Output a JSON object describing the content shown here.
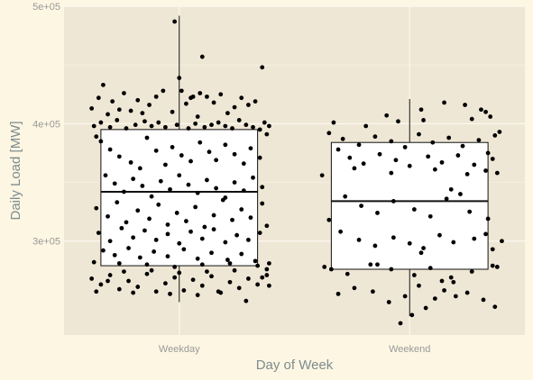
{
  "chart_data": {
    "type": "boxplot-jitter",
    "xlabel": "Day of Week",
    "ylabel": "Daily Load [MW]",
    "ylim": [
      220000,
      500000
    ],
    "y_ticks": [
      {
        "value": 300000,
        "label": "3e+05"
      },
      {
        "value": 400000,
        "label": "4e+05"
      },
      {
        "value": 500000,
        "label": "5e+05"
      }
    ],
    "categories": [
      "Weekday",
      "Weekend"
    ],
    "boxes": [
      {
        "category": "Weekday",
        "min": 248000,
        "q1": 279000,
        "median": 342000,
        "q3": 395000,
        "max": 492000
      },
      {
        "category": "Weekend",
        "min": 236000,
        "q1": 276000,
        "median": 334000,
        "q3": 384000,
        "max": 421000
      }
    ],
    "points": {
      "Weekday": [
        [
          -0.38,
          413000
        ],
        [
          -0.35,
          422000
        ],
        [
          -0.33,
          433000
        ],
        [
          -0.31,
          408000
        ],
        [
          -0.29,
          419000
        ],
        [
          -0.26,
          412000
        ],
        [
          -0.24,
          426000
        ],
        [
          -0.21,
          411000
        ],
        [
          -0.18,
          420000
        ],
        [
          -0.16,
          409000
        ],
        [
          -0.13,
          416000
        ],
        [
          -0.1,
          423000
        ],
        [
          -0.07,
          428000
        ],
        [
          -0.03,
          410000
        ],
        [
          0.0,
          439000
        ],
        [
          0.03,
          417000
        ],
        [
          0.06,
          423000
        ],
        [
          0.09,
          426000
        ],
        [
          0.12,
          423000
        ],
        [
          0.15,
          418000
        ],
        [
          0.18,
          425000
        ],
        [
          0.21,
          409000
        ],
        [
          0.24,
          414000
        ],
        [
          0.27,
          422000
        ],
        [
          0.3,
          416000
        ],
        [
          0.33,
          419000
        ],
        [
          0.36,
          448000
        ],
        [
          0.05,
          422000
        ],
        [
          0.08,
          406000
        ],
        [
          0.1,
          457000
        ],
        [
          -0.02,
          487000
        ],
        [
          0.01,
          428000
        ],
        [
          -0.37,
          398000
        ],
        [
          -0.34,
          401000
        ],
        [
          -0.3,
          397000
        ],
        [
          -0.27,
          403000
        ],
        [
          -0.23,
          396000
        ],
        [
          -0.19,
          399000
        ],
        [
          -0.15,
          402000
        ],
        [
          -0.12,
          398000
        ],
        [
          -0.09,
          401000
        ],
        [
          -0.06,
          397000
        ],
        [
          -0.01,
          399000
        ],
        [
          0.04,
          396000
        ],
        [
          0.07,
          400000
        ],
        [
          0.11,
          397000
        ],
        [
          0.14,
          399000
        ],
        [
          0.17,
          401000
        ],
        [
          0.2,
          398000
        ],
        [
          0.23,
          396000
        ],
        [
          0.26,
          403000
        ],
        [
          0.29,
          399000
        ],
        [
          0.32,
          397000
        ],
        [
          0.35,
          395000
        ],
        [
          0.37,
          401000
        ],
        [
          0.39,
          398000
        ],
        [
          0.38,
          391000
        ],
        [
          -0.36,
          389000
        ],
        [
          -0.34,
          385000
        ],
        [
          -0.3,
          378000
        ],
        [
          -0.26,
          372000
        ],
        [
          -0.21,
          367000
        ],
        [
          -0.17,
          362000
        ],
        [
          -0.14,
          388000
        ],
        [
          -0.1,
          377000
        ],
        [
          -0.06,
          365000
        ],
        [
          -0.03,
          380000
        ],
        [
          0.01,
          373000
        ],
        [
          0.05,
          368000
        ],
        [
          0.09,
          384000
        ],
        [
          0.13,
          376000
        ],
        [
          0.16,
          369000
        ],
        [
          0.2,
          382000
        ],
        [
          0.24,
          374000
        ],
        [
          0.28,
          366000
        ],
        [
          0.31,
          379000
        ],
        [
          0.35,
          371000
        ],
        [
          -0.32,
          356000
        ],
        [
          -0.28,
          349000
        ],
        [
          -0.24,
          342000
        ],
        [
          -0.2,
          353000
        ],
        [
          -0.16,
          347000
        ],
        [
          -0.12,
          338000
        ],
        [
          -0.08,
          351000
        ],
        [
          -0.04,
          344000
        ],
        [
          0.0,
          356000
        ],
        [
          0.04,
          348000
        ],
        [
          0.08,
          341000
        ],
        [
          0.12,
          352000
        ],
        [
          0.16,
          345000
        ],
        [
          0.2,
          337000
        ],
        [
          0.24,
          350000
        ],
        [
          0.28,
          343000
        ],
        [
          0.32,
          354000
        ],
        [
          0.36,
          346000
        ],
        [
          -0.36,
          328000
        ],
        [
          -0.31,
          321000
        ],
        [
          -0.27,
          333000
        ],
        [
          -0.23,
          316000
        ],
        [
          -0.18,
          326000
        ],
        [
          -0.13,
          319000
        ],
        [
          -0.09,
          331000
        ],
        [
          -0.05,
          314000
        ],
        [
          -0.01,
          324000
        ],
        [
          0.03,
          317000
        ],
        [
          0.07,
          329000
        ],
        [
          0.11,
          312000
        ],
        [
          0.15,
          322000
        ],
        [
          0.19,
          335000
        ],
        [
          0.23,
          318000
        ],
        [
          0.27,
          327000
        ],
        [
          0.31,
          320000
        ],
        [
          0.36,
          332000
        ],
        [
          0.38,
          313000
        ],
        [
          -0.35,
          307000
        ],
        [
          -0.3,
          300000
        ],
        [
          -0.25,
          311000
        ],
        [
          -0.2,
          303000
        ],
        [
          -0.15,
          309000
        ],
        [
          -0.1,
          301000
        ],
        [
          -0.05,
          306000
        ],
        [
          0.0,
          298000
        ],
        [
          0.05,
          308000
        ],
        [
          0.1,
          302000
        ],
        [
          0.15,
          310000
        ],
        [
          0.2,
          299000
        ],
        [
          0.25,
          305000
        ],
        [
          0.3,
          301000
        ],
        [
          0.35,
          307000
        ],
        [
          -0.33,
          292000
        ],
        [
          -0.28,
          288000
        ],
        [
          -0.22,
          294000
        ],
        [
          -0.17,
          286000
        ],
        [
          -0.11,
          291000
        ],
        [
          -0.05,
          287000
        ],
        [
          0.02,
          293000
        ],
        [
          0.08,
          285000
        ],
        [
          0.14,
          290000
        ],
        [
          0.21,
          284000
        ],
        [
          0.27,
          289000
        ],
        [
          0.33,
          283000
        ],
        [
          -0.37,
          282000
        ],
        [
          -0.26,
          281000
        ],
        [
          -0.14,
          280000
        ],
        [
          -0.02,
          278000
        ],
        [
          0.1,
          280000
        ],
        [
          0.22,
          281000
        ],
        [
          0.34,
          279000
        ],
        [
          0.38,
          276000
        ],
        [
          0.39,
          281000
        ],
        [
          -0.38,
          268000
        ],
        [
          -0.34,
          263000
        ],
        [
          -0.3,
          271000
        ],
        [
          -0.26,
          259000
        ],
        [
          -0.22,
          266000
        ],
        [
          -0.18,
          261000
        ],
        [
          -0.14,
          272000
        ],
        [
          -0.1,
          257000
        ],
        [
          -0.06,
          264000
        ],
        [
          -0.02,
          269000
        ],
        [
          0.02,
          258000
        ],
        [
          0.06,
          267000
        ],
        [
          0.1,
          262000
        ],
        [
          0.14,
          270000
        ],
        [
          0.18,
          256000
        ],
        [
          0.22,
          265000
        ],
        [
          0.26,
          260000
        ],
        [
          0.3,
          268000
        ],
        [
          0.34,
          263000
        ],
        [
          0.38,
          271000
        ],
        [
          -0.36,
          257000
        ],
        [
          -0.24,
          274000
        ],
        [
          -0.12,
          275000
        ],
        [
          0.0,
          273000
        ],
        [
          0.12,
          274000
        ],
        [
          0.24,
          275000
        ],
        [
          0.36,
          269000
        ],
        [
          -0.04,
          255000
        ],
        [
          0.08,
          254000
        ],
        [
          0.17,
          257000
        ],
        [
          0.29,
          249000
        ],
        [
          0.39,
          262000
        ],
        [
          -0.2,
          256000
        ],
        [
          -0.31,
          266000
        ]
      ],
      "Weekend": [
        [
          -0.19,
          398000
        ],
        [
          -0.1,
          407000
        ],
        [
          0.05,
          412000
        ],
        [
          0.15,
          418000
        ],
        [
          0.24,
          416000
        ],
        [
          0.33,
          410000
        ],
        [
          0.35,
          406000
        ],
        [
          0.06,
          403000
        ],
        [
          0.27,
          404000
        ],
        [
          0.31,
          412000
        ],
        [
          -0.33,
          401000
        ],
        [
          -0.05,
          402000
        ],
        [
          -0.35,
          392000
        ],
        [
          -0.29,
          387000
        ],
        [
          -0.22,
          382000
        ],
        [
          -0.15,
          389000
        ],
        [
          -0.08,
          385000
        ],
        [
          -0.02,
          380000
        ],
        [
          0.04,
          391000
        ],
        [
          0.1,
          384000
        ],
        [
          0.17,
          388000
        ],
        [
          0.23,
          381000
        ],
        [
          0.3,
          386000
        ],
        [
          0.37,
          390000
        ],
        [
          0.39,
          393000
        ],
        [
          -0.31,
          378000
        ],
        [
          0.34,
          375000
        ],
        [
          -0.26,
          371000
        ],
        [
          -0.2,
          366000
        ],
        [
          -0.13,
          374000
        ],
        [
          -0.06,
          369000
        ],
        [
          0.0,
          364000
        ],
        [
          0.08,
          372000
        ],
        [
          0.14,
          367000
        ],
        [
          0.21,
          373000
        ],
        [
          0.28,
          365000
        ],
        [
          0.36,
          370000
        ],
        [
          -0.38,
          356000
        ],
        [
          -0.24,
          362000
        ],
        [
          -0.08,
          358000
        ],
        [
          0.11,
          361000
        ],
        [
          0.25,
          357000
        ],
        [
          0.33,
          360000
        ],
        [
          0.18,
          344000
        ],
        [
          0.22,
          340000
        ],
        [
          0.38,
          358000
        ],
        [
          -0.28,
          338000
        ],
        [
          -0.21,
          330000
        ],
        [
          -0.14,
          324000
        ],
        [
          -0.07,
          334000
        ],
        [
          0.02,
          327000
        ],
        [
          0.09,
          321000
        ],
        [
          0.16,
          336000
        ],
        [
          0.26,
          325000
        ],
        [
          0.34,
          319000
        ],
        [
          -0.35,
          318000
        ],
        [
          -0.3,
          308000
        ],
        [
          -0.22,
          301000
        ],
        [
          -0.15,
          296000
        ],
        [
          -0.07,
          303000
        ],
        [
          0.0,
          298000
        ],
        [
          0.06,
          294000
        ],
        [
          0.13,
          305000
        ],
        [
          0.19,
          299000
        ],
        [
          0.28,
          302000
        ],
        [
          0.36,
          293000
        ],
        [
          0.4,
          300000
        ],
        [
          0.05,
          290000
        ],
        [
          0.33,
          306000
        ],
        [
          -0.37,
          278000
        ],
        [
          -0.27,
          272000
        ],
        [
          -0.17,
          280000
        ],
        [
          -0.08,
          276000
        ],
        [
          0.02,
          271000
        ],
        [
          0.09,
          277000
        ],
        [
          0.18,
          269000
        ],
        [
          0.27,
          274000
        ],
        [
          0.36,
          279000
        ],
        [
          0.38,
          278000
        ],
        [
          -0.34,
          276000
        ],
        [
          -0.31,
          255000
        ],
        [
          -0.24,
          260000
        ],
        [
          -0.16,
          257000
        ],
        [
          -0.09,
          248000
        ],
        [
          -0.02,
          253000
        ],
        [
          0.04,
          262000
        ],
        [
          0.11,
          251000
        ],
        [
          0.19,
          265000
        ],
        [
          0.25,
          256000
        ],
        [
          0.32,
          250000
        ],
        [
          0.37,
          244000
        ],
        [
          0.01,
          237000
        ],
        [
          0.07,
          243000
        ],
        [
          -0.04,
          230000
        ],
        [
          0.15,
          258000
        ],
        [
          0.14,
          266000
        ],
        [
          -0.14,
          280000
        ],
        [
          0.2,
          253000
        ]
      ]
    }
  }
}
